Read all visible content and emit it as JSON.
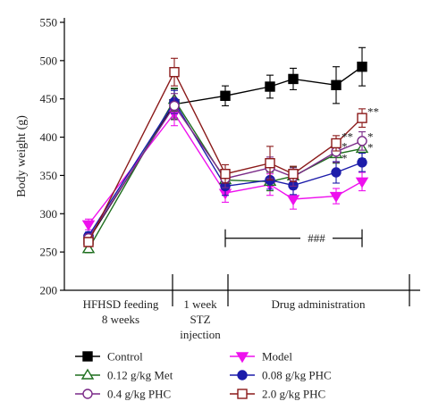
{
  "chart_data": {
    "type": "line",
    "ylabel": "Body weight (g)",
    "ylim": [
      200,
      550
    ],
    "yticks": [
      200,
      250,
      300,
      350,
      400,
      450,
      500,
      550
    ],
    "x_positions": [
      0,
      1,
      2,
      3,
      4,
      5,
      6,
      7
    ],
    "phases": [
      {
        "label_lines": [
          "HFHSD feeding",
          "8 weeks"
        ]
      },
      {
        "label_lines": [
          "1 week",
          "STZ",
          "injection"
        ]
      },
      {
        "label_lines": [
          "Drug administration"
        ]
      }
    ],
    "series": [
      {
        "name": "Control",
        "color": "#000000",
        "marker": "square-filled",
        "values": [
          266,
          443,
          454,
          466,
          476,
          468,
          492
        ],
        "errors": [
          8,
          20,
          13,
          15,
          14,
          24,
          25
        ]
      },
      {
        "name": "Model",
        "color": "#ee11ee",
        "marker": "triangle-down-filled",
        "values": [
          286,
          431,
          327,
          338,
          319,
          323,
          342
        ],
        "errors": [
          7,
          16,
          12,
          14,
          13,
          10,
          12
        ]
      },
      {
        "name": "0.12 g/kg Met",
        "color": "#1f6f1f",
        "marker": "triangle-up-open",
        "values": [
          254,
          449,
          344,
          342,
          349,
          378,
          385
        ],
        "errors": [
          5,
          15,
          12,
          12,
          12,
          12,
          13
        ]
      },
      {
        "name": "0.08 g/kg PHC",
        "color": "#1c1caa",
        "marker": "circle-filled",
        "values": [
          271,
          446,
          336,
          344,
          337,
          354,
          367
        ],
        "errors": [
          5,
          15,
          12,
          12,
          12,
          14,
          12
        ]
      },
      {
        "name": "0.4 g/kg PHC",
        "color": "#7a2a88",
        "marker": "circle-open",
        "values": [
          268,
          441,
          346,
          360,
          348,
          381,
          395
        ],
        "errors": [
          5,
          16,
          12,
          14,
          12,
          14,
          12
        ]
      },
      {
        "name": "2.0 g/kg PHC",
        "color": "#8b1a1a",
        "marker": "square-open",
        "values": [
          263,
          485,
          352,
          366,
          352,
          392,
          425
        ],
        "errors": [
          6,
          18,
          12,
          22,
          10,
          10,
          12
        ]
      }
    ],
    "annotations": {
      "bracket_label": "###",
      "bracket_y": 268,
      "bracket_x_range": [
        2,
        6
      ],
      "significance": [
        {
          "x": 5,
          "y": 400,
          "text": "**"
        },
        {
          "x": 5,
          "y": 387,
          "text": "*"
        },
        {
          "x": 5,
          "y": 372,
          "text": "*"
        },
        {
          "x": 6,
          "y": 433,
          "text": "**"
        },
        {
          "x": 6,
          "y": 400,
          "text": "*"
        },
        {
          "x": 6,
          "y": 386,
          "text": "*"
        }
      ]
    },
    "legend_placement": "bottom",
    "grid": false
  }
}
